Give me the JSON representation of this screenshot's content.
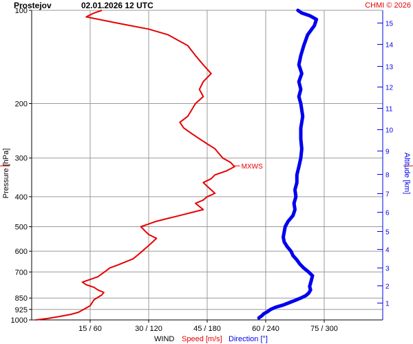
{
  "header": {
    "station": "Prostejov",
    "datetime": "02.01.2026 12 UTC",
    "credit": "CHMI © 2026"
  },
  "colors": {
    "speed": "#e60000",
    "direction": "#0000ee",
    "grid": "#9a9a9a",
    "axis": "#000000"
  },
  "chart_data": {
    "type": "line",
    "title": "Prostejov   02.01.2026 12 UTC",
    "y_axis_left": {
      "label": "Pressure [hPa]",
      "scale": "log",
      "ticks": [
        100,
        200,
        300,
        400,
        500,
        600,
        700,
        850,
        925,
        1000
      ]
    },
    "y_axis_right": {
      "label": "Altitude [km]",
      "ticks": [
        1,
        2,
        3,
        4,
        5,
        6,
        7,
        8,
        9,
        10,
        11,
        12,
        13,
        14,
        15
      ]
    },
    "x_axis": {
      "ticks": [
        "15 / 60",
        "30 / 120",
        "45 / 180",
        "60 / 240",
        "75 / 300"
      ],
      "tick_values_speed": [
        15,
        30,
        45,
        60,
        75
      ],
      "speed_range": [
        0,
        90
      ],
      "direction_range": [
        0,
        360
      ],
      "label_parts": [
        "WIND",
        "Speed [m/s]",
        "Direction [°]"
      ]
    },
    "annotation": {
      "text": "MXWS",
      "pressure": 318,
      "speed": 52
    },
    "grid": true,
    "series": [
      {
        "name": "Speed [m/s]",
        "unit": "m/s",
        "points": [
          [
            1000,
            1
          ],
          [
            990,
            4
          ],
          [
            975,
            7
          ],
          [
            960,
            10
          ],
          [
            945,
            12
          ],
          [
            930,
            13
          ],
          [
            915,
            14
          ],
          [
            900,
            15
          ],
          [
            880,
            15.5
          ],
          [
            860,
            16
          ],
          [
            845,
            17
          ],
          [
            830,
            18
          ],
          [
            815,
            18.5
          ],
          [
            800,
            17
          ],
          [
            785,
            16
          ],
          [
            770,
            14
          ],
          [
            755,
            13
          ],
          [
            740,
            15
          ],
          [
            725,
            17
          ],
          [
            710,
            18
          ],
          [
            695,
            19
          ],
          [
            680,
            20
          ],
          [
            665,
            22
          ],
          [
            650,
            24
          ],
          [
            635,
            26
          ],
          [
            620,
            27
          ],
          [
            605,
            28
          ],
          [
            590,
            29
          ],
          [
            575,
            30
          ],
          [
            560,
            31
          ],
          [
            545,
            32
          ],
          [
            530,
            30
          ],
          [
            515,
            29
          ],
          [
            500,
            28
          ],
          [
            490,
            30
          ],
          [
            480,
            32
          ],
          [
            470,
            35
          ],
          [
            460,
            38
          ],
          [
            450,
            41
          ],
          [
            440,
            44
          ],
          [
            430,
            43
          ],
          [
            420,
            42
          ],
          [
            410,
            44
          ],
          [
            400,
            45
          ],
          [
            390,
            47
          ],
          [
            380,
            46
          ],
          [
            370,
            45
          ],
          [
            360,
            44
          ],
          [
            350,
            46
          ],
          [
            340,
            47
          ],
          [
            330,
            50
          ],
          [
            320,
            52
          ],
          [
            310,
            51
          ],
          [
            300,
            49
          ],
          [
            290,
            48
          ],
          [
            280,
            47
          ],
          [
            270,
            45
          ],
          [
            260,
            43
          ],
          [
            250,
            41
          ],
          [
            240,
            39
          ],
          [
            230,
            38
          ],
          [
            220,
            40
          ],
          [
            210,
            41
          ],
          [
            200,
            42
          ],
          [
            190,
            44
          ],
          [
            180,
            43
          ],
          [
            170,
            44
          ],
          [
            160,
            46
          ],
          [
            150,
            44
          ],
          [
            140,
            42
          ],
          [
            130,
            40
          ],
          [
            120,
            35
          ],
          [
            115,
            30
          ],
          [
            110,
            22
          ],
          [
            105,
            14
          ],
          [
            102,
            16
          ],
          [
            100,
            18
          ]
        ]
      },
      {
        "name": "Direction [°]",
        "unit": "deg",
        "points": [
          [
            985,
            233
          ],
          [
            970,
            236
          ],
          [
            955,
            238
          ],
          [
            940,
            242
          ],
          [
            925,
            245
          ],
          [
            910,
            250
          ],
          [
            895,
            258
          ],
          [
            880,
            264
          ],
          [
            865,
            270
          ],
          [
            850,
            276
          ],
          [
            835,
            281
          ],
          [
            820,
            284
          ],
          [
            800,
            286
          ],
          [
            780,
            285
          ],
          [
            760,
            286
          ],
          [
            740,
            287
          ],
          [
            720,
            288
          ],
          [
            700,
            284
          ],
          [
            680,
            279
          ],
          [
            660,
            275
          ],
          [
            640,
            272
          ],
          [
            620,
            268
          ],
          [
            600,
            266
          ],
          [
            580,
            262
          ],
          [
            560,
            259
          ],
          [
            540,
            258
          ],
          [
            520,
            259
          ],
          [
            500,
            260
          ],
          [
            480,
            263
          ],
          [
            460,
            268
          ],
          [
            440,
            270
          ],
          [
            420,
            269
          ],
          [
            400,
            271
          ],
          [
            380,
            270
          ],
          [
            360,
            272
          ],
          [
            340,
            272
          ],
          [
            320,
            274
          ],
          [
            300,
            276
          ],
          [
            280,
            277
          ],
          [
            260,
            276
          ],
          [
            240,
            276
          ],
          [
            220,
            278
          ],
          [
            200,
            276
          ],
          [
            190,
            274
          ],
          [
            180,
            276
          ],
          [
            170,
            274
          ],
          [
            160,
            277
          ],
          [
            150,
            274
          ],
          [
            140,
            276
          ],
          [
            130,
            279
          ],
          [
            120,
            283
          ],
          [
            112,
            290
          ],
          [
            107,
            292
          ],
          [
            104,
            285
          ],
          [
            102,
            277
          ],
          [
            100,
            273
          ]
        ]
      }
    ]
  }
}
